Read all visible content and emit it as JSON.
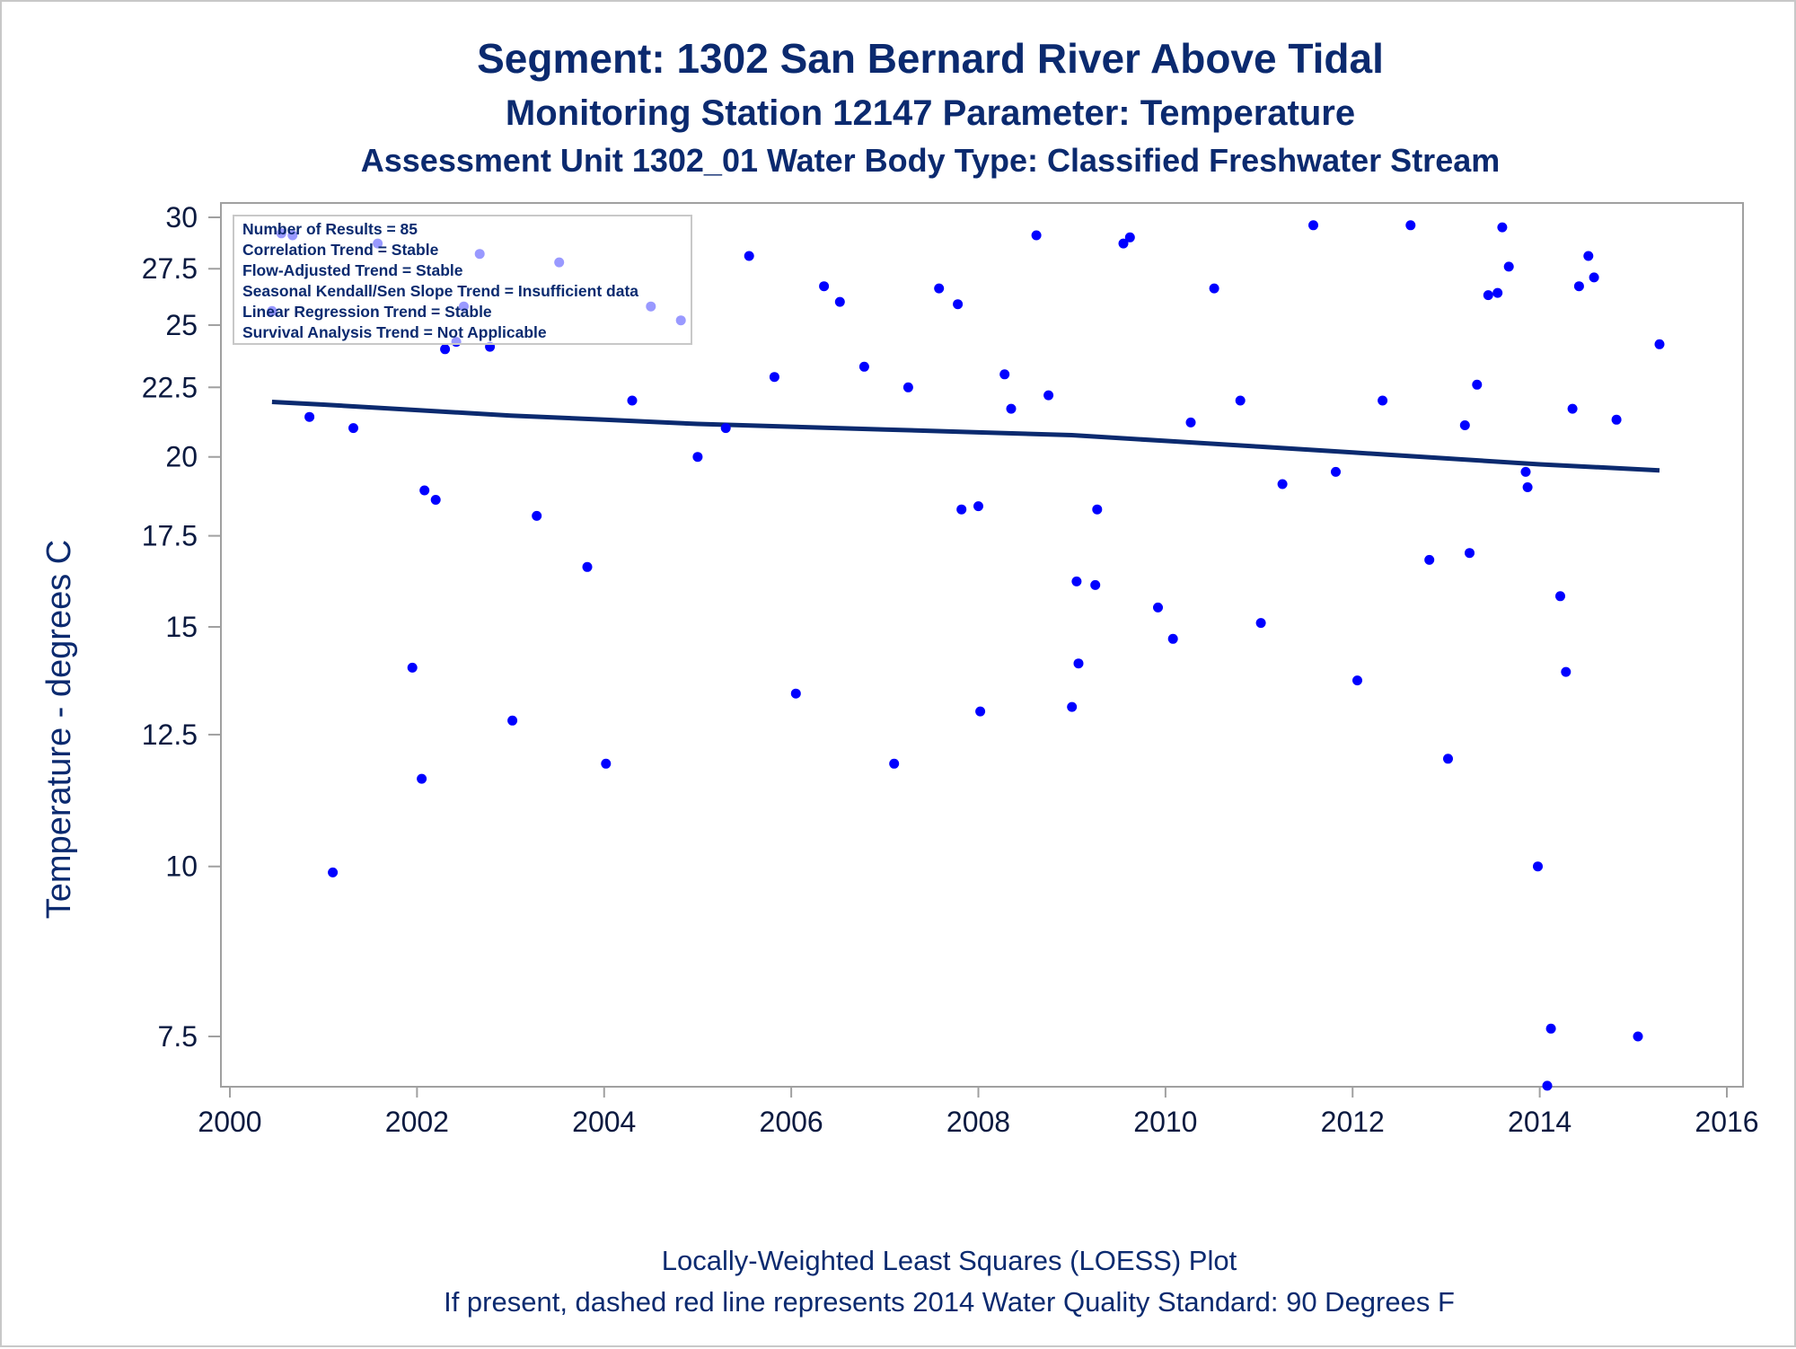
{
  "titles": {
    "line1": "Segment: 1302  San Bernard River Above Tidal",
    "line2": "Monitoring Station 12147 Parameter: Temperature",
    "line3": "Assessment Unit 1302_01   Water Body Type: Classified Freshwater Stream"
  },
  "footnotes": {
    "line1": "Locally-Weighted Least Squares (LOESS) Plot",
    "line2": "If present, dashed red line represents 2014 Water Quality Standard: 90   Degrees F"
  },
  "legend": {
    "lines": [
      "Number of Results = 85",
      "Correlation Trend = Stable",
      "Flow-Adjusted Trend = Stable",
      "Seasonal Kendall/Sen Slope Trend = Insufficient data",
      "Linear Regression Trend = Stable",
      "Survival Analysis Trend = Not Applicable"
    ]
  },
  "colors": {
    "points": "#0000ff",
    "loess": "#0b2a6f",
    "axis": "#a0a0a0",
    "text": "#0b2a6f"
  },
  "chart_data": {
    "type": "scatter",
    "xlabel": "",
    "ylabel": "Temperature - degrees C",
    "y_scale": "log",
    "xlim": [
      2000,
      2016
    ],
    "ylim": [
      6.9,
      30
    ],
    "x_ticks": [
      2000,
      2002,
      2004,
      2006,
      2008,
      2010,
      2012,
      2014,
      2016
    ],
    "y_ticks": [
      7.5,
      10,
      12.5,
      15,
      17.5,
      20,
      22.5,
      25,
      27.5,
      30
    ],
    "y_tick_labels": [
      "7.5",
      "10",
      "12.5",
      "15",
      "17.5",
      "20",
      "22.5",
      "25",
      "27.5",
      "30"
    ],
    "grid": false,
    "legend_position": "top-left",
    "series": [
      {
        "type": "scatter",
        "points": [
          [
            2000.45,
            25.6
          ],
          [
            2000.55,
            29.2
          ],
          [
            2000.67,
            29.1
          ],
          [
            2000.85,
            21.4
          ],
          [
            2001.1,
            9.9
          ],
          [
            2001.32,
            21.0
          ],
          [
            2001.58,
            28.7
          ],
          [
            2001.95,
            14.0
          ],
          [
            2002.05,
            11.6
          ],
          [
            2002.08,
            18.9
          ],
          [
            2002.2,
            18.6
          ],
          [
            2002.3,
            24.0
          ],
          [
            2002.42,
            24.3
          ],
          [
            2002.5,
            25.8
          ],
          [
            2002.67,
            28.2
          ],
          [
            2002.78,
            24.1
          ],
          [
            2003.02,
            12.8
          ],
          [
            2003.28,
            18.1
          ],
          [
            2003.52,
            27.8
          ],
          [
            2003.82,
            16.6
          ],
          [
            2004.02,
            11.9
          ],
          [
            2004.3,
            22.0
          ],
          [
            2004.5,
            25.8
          ],
          [
            2004.82,
            25.2
          ],
          [
            2005.0,
            20.0
          ],
          [
            2005.3,
            21.0
          ],
          [
            2005.55,
            28.1
          ],
          [
            2005.82,
            22.9
          ],
          [
            2006.05,
            13.4
          ],
          [
            2006.35,
            26.7
          ],
          [
            2006.52,
            26.0
          ],
          [
            2006.78,
            23.3
          ],
          [
            2007.1,
            11.9
          ],
          [
            2007.25,
            22.5
          ],
          [
            2007.58,
            26.6
          ],
          [
            2007.78,
            25.9
          ],
          [
            2007.82,
            18.3
          ],
          [
            2008.0,
            18.4
          ],
          [
            2008.02,
            13.0
          ],
          [
            2008.28,
            23.0
          ],
          [
            2008.35,
            21.7
          ],
          [
            2008.62,
            29.1
          ],
          [
            2008.75,
            22.2
          ],
          [
            2009.0,
            13.1
          ],
          [
            2009.05,
            16.2
          ],
          [
            2009.07,
            14.1
          ],
          [
            2009.25,
            16.1
          ],
          [
            2009.27,
            18.3
          ],
          [
            2009.55,
            28.7
          ],
          [
            2009.62,
            29.0
          ],
          [
            2009.92,
            15.5
          ],
          [
            2010.08,
            14.7
          ],
          [
            2010.27,
            21.2
          ],
          [
            2010.52,
            26.6
          ],
          [
            2010.8,
            22.0
          ],
          [
            2011.02,
            15.1
          ],
          [
            2011.25,
            19.1
          ],
          [
            2011.58,
            29.6
          ],
          [
            2011.82,
            19.5
          ],
          [
            2012.05,
            13.7
          ],
          [
            2012.32,
            22.0
          ],
          [
            2012.62,
            29.6
          ],
          [
            2012.82,
            16.8
          ],
          [
            2013.02,
            12.0
          ],
          [
            2013.2,
            21.1
          ],
          [
            2013.25,
            17.0
          ],
          [
            2013.33,
            22.6
          ],
          [
            2013.45,
            26.3
          ],
          [
            2013.55,
            26.4
          ],
          [
            2013.6,
            29.5
          ],
          [
            2013.67,
            27.6
          ],
          [
            2013.85,
            19.5
          ],
          [
            2013.87,
            19.0
          ],
          [
            2013.98,
            10.0
          ],
          [
            2014.08,
            6.9
          ],
          [
            2014.12,
            7.6
          ],
          [
            2014.22,
            15.8
          ],
          [
            2014.28,
            13.9
          ],
          [
            2014.35,
            21.7
          ],
          [
            2014.42,
            26.7
          ],
          [
            2014.52,
            28.1
          ],
          [
            2014.58,
            27.1
          ],
          [
            2014.82,
            21.3
          ],
          [
            2015.05,
            7.5
          ],
          [
            2015.28,
            24.2
          ]
        ]
      },
      {
        "type": "line",
        "points": [
          [
            2000.45,
            21.95
          ],
          [
            2001.0,
            21.85
          ],
          [
            2002.0,
            21.65
          ],
          [
            2003.0,
            21.45
          ],
          [
            2004.0,
            21.3
          ],
          [
            2005.0,
            21.15
          ],
          [
            2006.0,
            21.05
          ],
          [
            2007.0,
            20.95
          ],
          [
            2008.0,
            20.85
          ],
          [
            2009.0,
            20.75
          ],
          [
            2010.0,
            20.55
          ],
          [
            2011.0,
            20.35
          ],
          [
            2012.0,
            20.15
          ],
          [
            2013.0,
            19.95
          ],
          [
            2014.0,
            19.75
          ],
          [
            2015.28,
            19.55
          ]
        ]
      }
    ]
  }
}
